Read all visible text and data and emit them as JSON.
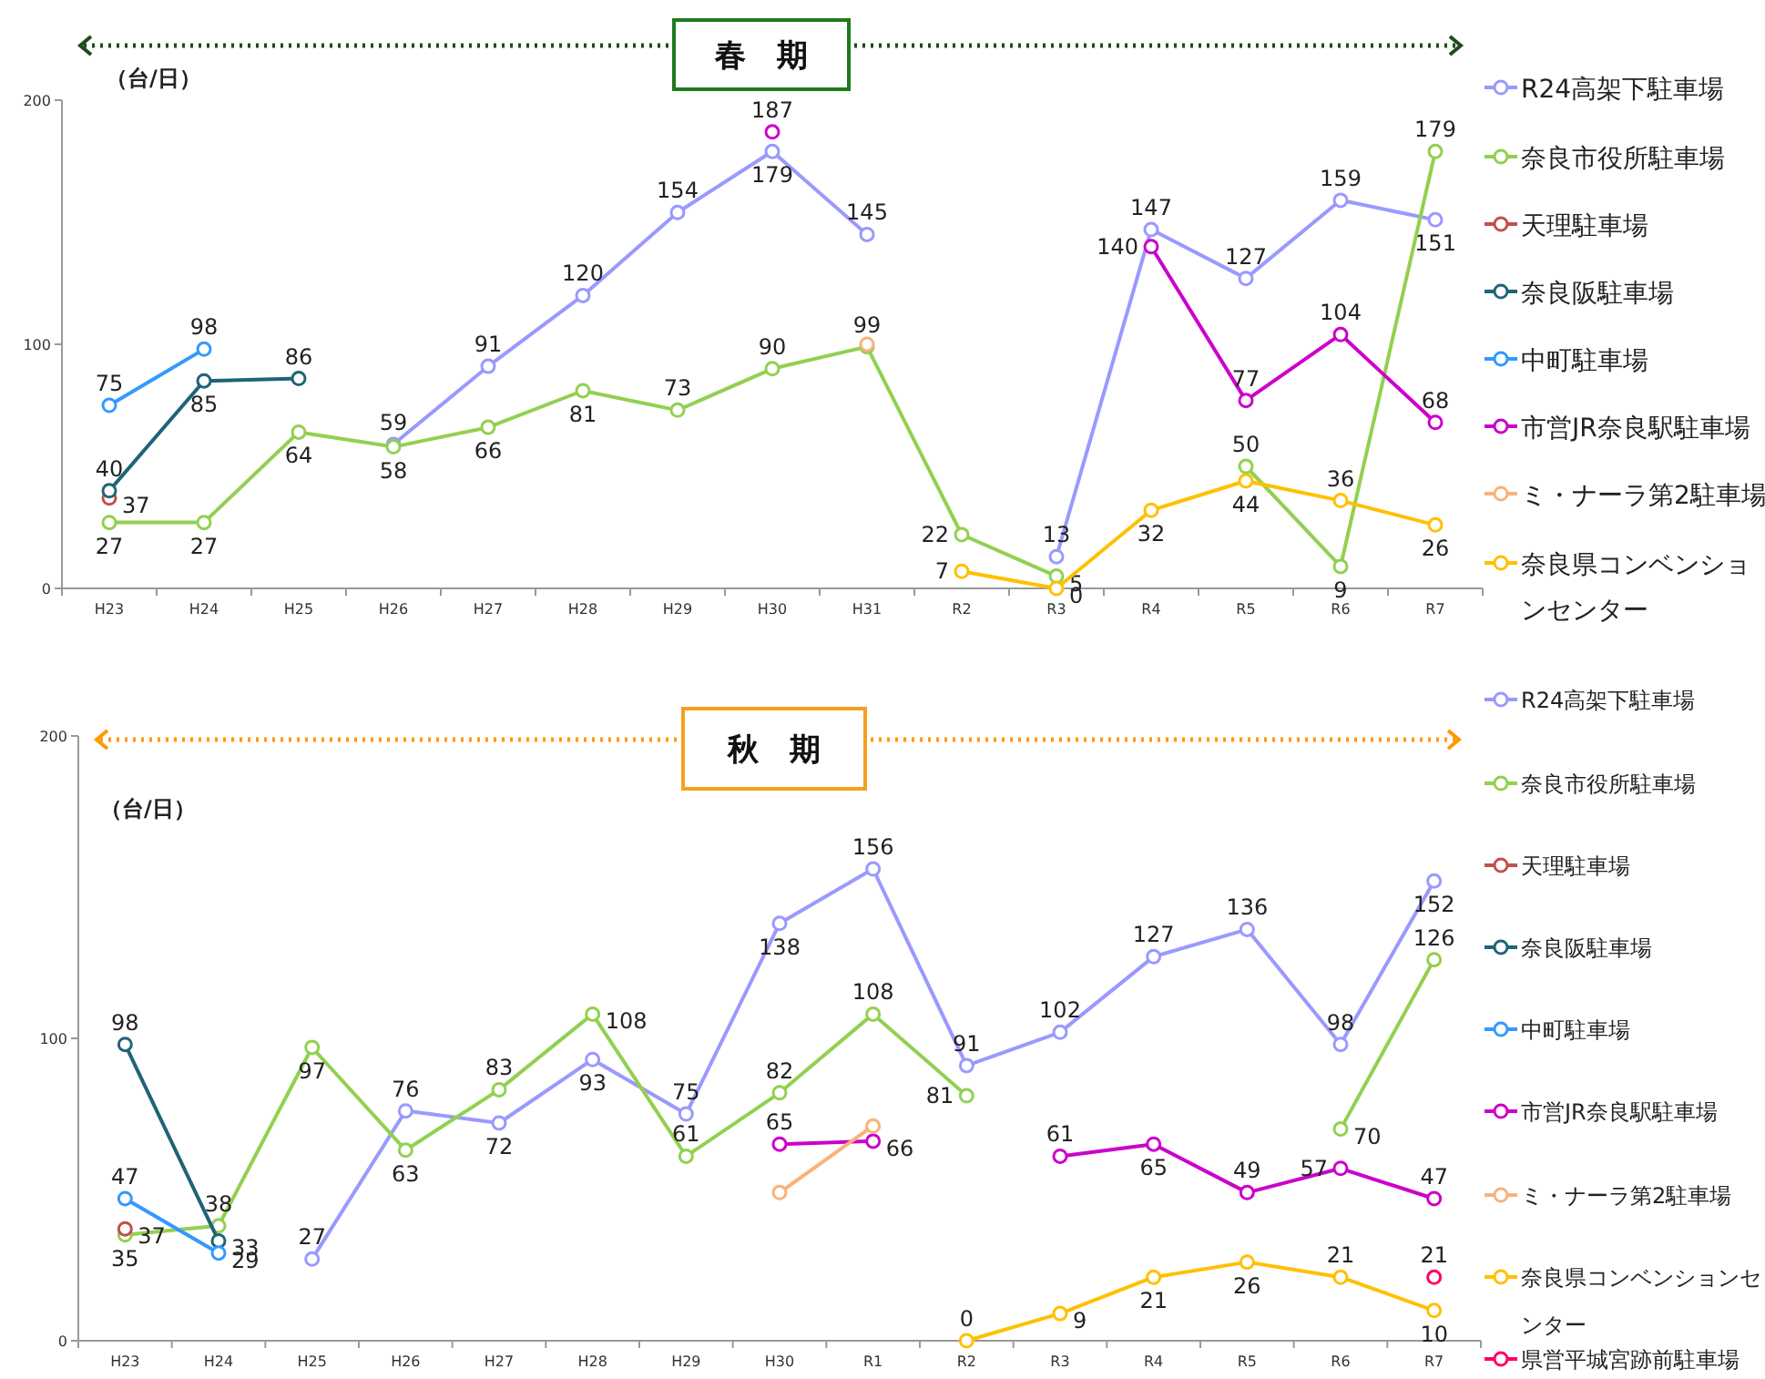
{
  "chart_data": [
    {
      "type": "line",
      "title": "春　期",
      "ylabel": "（台/日）",
      "categories": [
        "H23",
        "H24",
        "H25",
        "H26",
        "H27",
        "H28",
        "H29",
        "H30",
        "H31",
        "R2",
        "R3",
        "R4",
        "R5",
        "R6",
        "R7"
      ],
      "ylim": [
        0,
        200
      ],
      "yticks": [
        0,
        100,
        200
      ],
      "legend": "right",
      "marker": "circle",
      "grid": false,
      "series": [
        {
          "name": "R24高架下駐車場",
          "color": "#9999ff",
          "values": [
            null,
            null,
            null,
            59,
            91,
            120,
            154,
            179,
            145,
            null,
            13,
            147,
            127,
            159,
            151
          ],
          "value_labels": [
            null,
            null,
            null,
            "59",
            "91",
            "120",
            "154",
            "179",
            "145",
            null,
            "13",
            "147",
            "127",
            "159",
            "151"
          ]
        },
        {
          "name": "奈良市役所駐車場",
          "color": "#92d050",
          "values": [
            27,
            27,
            64,
            58,
            66,
            81,
            73,
            90,
            99,
            22,
            5,
            null,
            50,
            9,
            179
          ],
          "value_labels": [
            "27",
            "27",
            "64",
            "58",
            "66",
            "81",
            "73",
            "90",
            "99",
            "22",
            "5",
            null,
            "50",
            "9",
            "179"
          ]
        },
        {
          "name": "天理駐車場",
          "color": "#c0504d",
          "values": [
            37,
            null,
            null,
            null,
            null,
            null,
            null,
            null,
            null,
            null,
            null,
            null,
            null,
            null,
            null
          ],
          "value_labels": [
            "37",
            null,
            null,
            null,
            null,
            null,
            null,
            null,
            null,
            null,
            null,
            null,
            null,
            null,
            null
          ]
        },
        {
          "name": "奈良阪駐車場",
          "color": "#1f6478",
          "values": [
            40,
            85,
            86,
            null,
            null,
            null,
            null,
            null,
            null,
            null,
            null,
            null,
            null,
            null,
            null
          ],
          "value_labels": [
            "40",
            "85",
            "86",
            null,
            null,
            null,
            null,
            null,
            null,
            null,
            null,
            null,
            null,
            null,
            null
          ]
        },
        {
          "name": "中町駐車場",
          "color": "#3399ff",
          "values": [
            75,
            98,
            null,
            null,
            null,
            null,
            null,
            null,
            null,
            null,
            null,
            null,
            null,
            null,
            null
          ],
          "value_labels": [
            "75",
            "98",
            null,
            null,
            null,
            null,
            null,
            null,
            null,
            null,
            null,
            null,
            null,
            null,
            null
          ]
        },
        {
          "name": "市営JR奈良駅駐車場",
          "color": "#cc00cc",
          "values": [
            null,
            null,
            null,
            null,
            null,
            null,
            null,
            187,
            null,
            null,
            null,
            140,
            77,
            104,
            68
          ],
          "value_labels": [
            null,
            null,
            null,
            null,
            null,
            null,
            null,
            "187",
            null,
            null,
            null,
            "140",
            "77",
            "104",
            "68"
          ]
        },
        {
          "name": "ミ・ナーラ第2駐車場",
          "color": "#f9b27a",
          "values": [
            null,
            null,
            null,
            null,
            null,
            null,
            null,
            null,
            100,
            null,
            null,
            null,
            null,
            null,
            null
          ]
        },
        {
          "name": "奈良県コンベンションセンター",
          "color": "#ffc000",
          "values": [
            null,
            null,
            null,
            null,
            null,
            null,
            null,
            null,
            null,
            7,
            0,
            32,
            44,
            36,
            26
          ],
          "value_labels": [
            null,
            null,
            null,
            null,
            null,
            null,
            null,
            null,
            null,
            "7",
            "0",
            "32",
            "44",
            "36",
            "26"
          ]
        }
      ]
    },
    {
      "type": "line",
      "title": "秋　期",
      "ylabel": "（台/日）",
      "categories": [
        "H23",
        "H24",
        "H25",
        "H26",
        "H27",
        "H28",
        "H29",
        "H30",
        "R1",
        "R2",
        "R3",
        "R4",
        "R5",
        "R6",
        "R7"
      ],
      "ylim": [
        0,
        200
      ],
      "yticks": [
        0,
        100,
        200
      ],
      "legend": "right",
      "marker": "circle",
      "grid": false,
      "series": [
        {
          "name": "R24高架下駐車場",
          "color": "#9999ff",
          "values": [
            null,
            null,
            27,
            76,
            72,
            93,
            75,
            138,
            156,
            91,
            102,
            127,
            136,
            98,
            152
          ],
          "value_labels": [
            null,
            null,
            "27",
            "76",
            "72",
            "93",
            "75",
            "138",
            "156",
            "91",
            "102",
            "127",
            "136",
            "98",
            "152"
          ]
        },
        {
          "name": "奈良市役所駐車場",
          "color": "#92d050",
          "values": [
            35,
            38,
            97,
            63,
            83,
            108,
            61,
            82,
            108,
            81,
            null,
            null,
            null,
            70,
            126
          ],
          "value_labels": [
            "35",
            "38",
            "97",
            "63",
            "83",
            "108",
            "61",
            "82",
            "108",
            "81",
            null,
            null,
            null,
            "70",
            "126"
          ]
        },
        {
          "name": "天理駐車場",
          "color": "#c0504d",
          "values": [
            37,
            null,
            null,
            null,
            null,
            null,
            null,
            null,
            null,
            null,
            null,
            null,
            null,
            null,
            null
          ],
          "value_labels": [
            "37",
            null,
            null,
            null,
            null,
            null,
            null,
            null,
            null,
            null,
            null,
            null,
            null,
            null,
            null
          ]
        },
        {
          "name": "奈良阪駐車場",
          "color": "#1f6478",
          "values": [
            98,
            33,
            null,
            null,
            null,
            null,
            null,
            null,
            null,
            null,
            null,
            null,
            null,
            null,
            null
          ],
          "value_labels": [
            "98",
            "33",
            null,
            null,
            null,
            null,
            null,
            null,
            null,
            null,
            null,
            null,
            null,
            null,
            null
          ]
        },
        {
          "name": "中町駐車場",
          "color": "#3399ff",
          "values": [
            47,
            29,
            null,
            null,
            null,
            null,
            null,
            null,
            null,
            null,
            null,
            null,
            null,
            null,
            null
          ],
          "value_labels": [
            "47",
            "29",
            null,
            null,
            null,
            null,
            null,
            null,
            null,
            null,
            null,
            null,
            null,
            null,
            null
          ]
        },
        {
          "name": "市営JR奈良駅駐車場",
          "color": "#cc00cc",
          "values": [
            null,
            null,
            null,
            null,
            null,
            null,
            null,
            65,
            66,
            null,
            61,
            65,
            49,
            57,
            47
          ],
          "value_labels": [
            null,
            null,
            null,
            null,
            null,
            null,
            null,
            "65",
            "66",
            null,
            "61",
            "65",
            "49",
            "57",
            "47"
          ]
        },
        {
          "name": "ミ・ナーラ第2駐車場",
          "color": "#f9b27a",
          "values": [
            null,
            null,
            null,
            null,
            null,
            null,
            null,
            49,
            71,
            null,
            null,
            null,
            null,
            null,
            null
          ]
        },
        {
          "name": "奈良県コンベンションセンター",
          "color": "#ffc000",
          "values": [
            null,
            null,
            null,
            null,
            null,
            null,
            null,
            null,
            null,
            0,
            9,
            21,
            26,
            21,
            10
          ],
          "value_labels": [
            null,
            null,
            null,
            null,
            null,
            null,
            null,
            null,
            null,
            "0",
            "9",
            "21",
            "26",
            "21",
            "10"
          ]
        },
        {
          "name": "県営平城宮跡前駐車場",
          "color": "#ff0066",
          "values": [
            null,
            null,
            null,
            null,
            null,
            null,
            null,
            null,
            null,
            null,
            null,
            null,
            null,
            null,
            21
          ],
          "value_labels": [
            null,
            null,
            null,
            null,
            null,
            null,
            null,
            null,
            null,
            null,
            null,
            null,
            null,
            null,
            "21"
          ]
        }
      ]
    }
  ]
}
